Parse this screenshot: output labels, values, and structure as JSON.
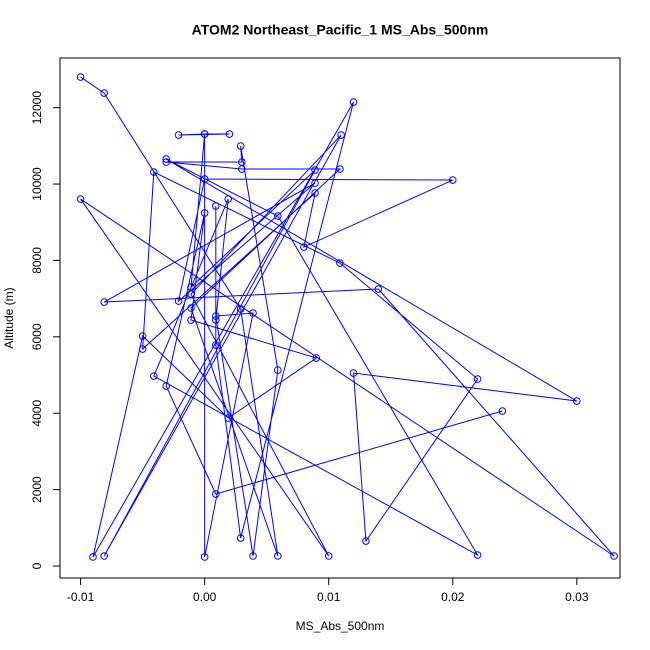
{
  "chart_data": {
    "type": "line",
    "title": "ATOM2 Northeast_Pacific_1 MS_Abs_500nm",
    "x_label": "MS_Abs_500nm",
    "y_label": "Altitude (m)",
    "color": "#0000ff",
    "x": [
      -0.01,
      -0.0081,
      0.0029,
      0.0059,
      -0.0011,
      0.0109,
      0.003,
      -0.0031,
      0.003,
      0.0029,
      0.0059,
      0.0039,
      0.0009,
      0.0039,
      0.0,
      0.0,
      0.002,
      -0.0021,
      0.0,
      -0.0011,
      0.0089,
      -0.0081,
      0.011,
      -0.0011,
      0.01,
      -0.01,
      0.033,
      0.014,
      -0.0081,
      0.0089,
      -0.0021,
      0.0,
      0.02,
      0.008,
      0.0089,
      -0.005,
      -0.0041,
      0.0109,
      0.022,
      0.013,
      0.012,
      0.03,
      -0.0031,
      0.0059,
      0.022,
      -0.0041,
      0.0019,
      0.0009,
      0.0009,
      0.0009,
      0.0029,
      0.012,
      -0.009,
      -0.005,
      0.0019,
      0.009,
      -0.0011,
      0.0,
      -0.0031,
      0.0009,
      0.024
    ],
    "values": [
      12801,
      12382,
      6728,
      262,
      6754,
      10393,
      10393,
      10576,
      10576,
      10995,
      5131,
      262,
      6544,
      6623,
      236,
      11309,
      11309,
      11283,
      11309,
      7300,
      10366,
      262,
      11283,
      7120,
      262,
      9607,
      262,
      7251,
      6911,
      10026,
      6937,
      10131,
      10105,
      8351,
      9764,
      5681,
      10314,
      7932,
      4895,
      654,
      5052,
      4319,
      10654,
      9162,
      288,
      4974,
      9607,
      6440,
      9424,
      5785,
      733,
      12147,
      236,
      6021,
      3874,
      5445,
      6440,
      9241,
      4712,
      1885,
      4058
    ],
    "xlim": [
      -0.01166,
      0.03348
    ],
    "ylim": [
      -314,
      13300
    ],
    "xticks": [
      -0.01,
      {
        "value": 0,
        "label": "0.00"
      },
      0.01,
      0.02,
      0.03
    ],
    "yticks": [
      0,
      2000,
      4000,
      6000,
      8000,
      10000,
      12000
    ]
  }
}
